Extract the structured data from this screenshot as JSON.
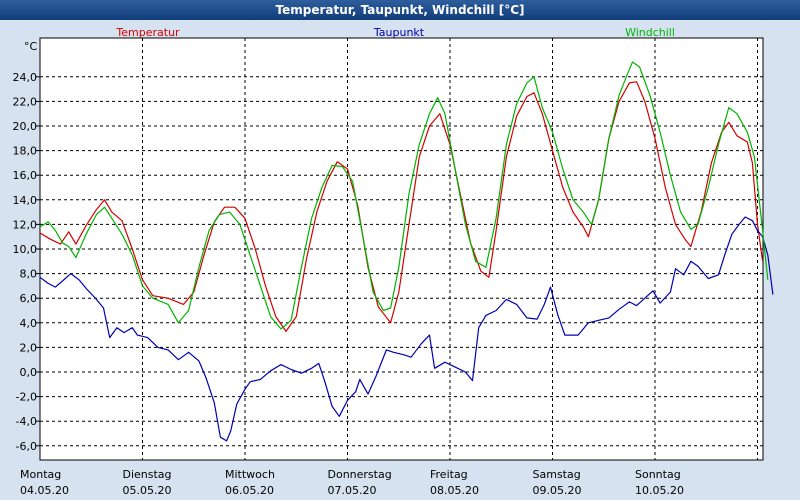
{
  "window": {
    "title": "Temperatur, Taupunkt, Windchill [°C]"
  },
  "chart_data": {
    "type": "line",
    "title": "Temperatur, Taupunkt, Windchill [°C]",
    "ylabel": "°C",
    "ylim": [
      -7.2,
      27.0
    ],
    "yticks": [
      24.0,
      22.0,
      20.0,
      18.0,
      16.0,
      14.0,
      12.0,
      10.0,
      8.0,
      6.0,
      4.0,
      2.0,
      0.0,
      -2.0,
      -4.0,
      -6.0
    ],
    "ytick_labels": [
      "24,0",
      "22,0",
      "20,0",
      "18,0",
      "16,0",
      "14,0",
      "12,0",
      "10,0",
      "8,0",
      "6,0",
      "4,0",
      "2,0",
      "0,0",
      "-2,0",
      "-4,0",
      "-6,0"
    ],
    "x_unit": "day index (0 = 04.05.20 00:00)",
    "xlim": [
      0,
      7.0
    ],
    "x_ticks": [
      {
        "day": "Montag",
        "date": "04.05.20"
      },
      {
        "day": "Dienstag",
        "date": "05.05.20"
      },
      {
        "day": "Mittwoch",
        "date": "06.05.20"
      },
      {
        "day": "Donnerstag",
        "date": "07.05.20"
      },
      {
        "day": "Freitag",
        "date": "08.05.20"
      },
      {
        "day": "Samstag",
        "date": "09.05.20"
      },
      {
        "day": "Sonntag",
        "date": "10.05.20"
      }
    ],
    "grid": true,
    "legend_position": "top",
    "series": [
      {
        "name": "Temperatur",
        "color": "#d40000",
        "points": [
          [
            0.0,
            11.3
          ],
          [
            0.1,
            10.8
          ],
          [
            0.2,
            10.4
          ],
          [
            0.28,
            11.4
          ],
          [
            0.35,
            10.4
          ],
          [
            0.45,
            11.9
          ],
          [
            0.55,
            13.2
          ],
          [
            0.63,
            14.0
          ],
          [
            0.7,
            13.0
          ],
          [
            0.8,
            12.3
          ],
          [
            0.9,
            10.0
          ],
          [
            1.0,
            7.5
          ],
          [
            1.1,
            6.2
          ],
          [
            1.25,
            6.0
          ],
          [
            1.4,
            5.5
          ],
          [
            1.5,
            6.5
          ],
          [
            1.6,
            9.5
          ],
          [
            1.7,
            12.2
          ],
          [
            1.8,
            13.4
          ],
          [
            1.9,
            13.4
          ],
          [
            2.0,
            12.5
          ],
          [
            2.1,
            10.0
          ],
          [
            2.2,
            7.0
          ],
          [
            2.3,
            4.5
          ],
          [
            2.4,
            3.3
          ],
          [
            2.5,
            4.5
          ],
          [
            2.6,
            9.2
          ],
          [
            2.7,
            13.0
          ],
          [
            2.8,
            15.5
          ],
          [
            2.9,
            17.1
          ],
          [
            3.0,
            16.5
          ],
          [
            3.1,
            13.5
          ],
          [
            3.2,
            8.5
          ],
          [
            3.3,
            5.3
          ],
          [
            3.42,
            4.0
          ],
          [
            3.5,
            6.5
          ],
          [
            3.6,
            12.0
          ],
          [
            3.7,
            17.5
          ],
          [
            3.8,
            20.0
          ],
          [
            3.9,
            21.0
          ],
          [
            4.0,
            18.5
          ],
          [
            4.1,
            14.5
          ],
          [
            4.2,
            10.5
          ],
          [
            4.3,
            8.2
          ],
          [
            4.38,
            7.7
          ],
          [
            4.45,
            11.5
          ],
          [
            4.55,
            17.5
          ],
          [
            4.65,
            20.8
          ],
          [
            4.75,
            22.4
          ],
          [
            4.82,
            22.7
          ],
          [
            4.9,
            21.0
          ],
          [
            5.0,
            18.0
          ],
          [
            5.1,
            15.0
          ],
          [
            5.2,
            13.0
          ],
          [
            5.3,
            11.8
          ],
          [
            5.35,
            11.0
          ],
          [
            5.45,
            14.0
          ],
          [
            5.55,
            19.0
          ],
          [
            5.65,
            22.0
          ],
          [
            5.75,
            23.5
          ],
          [
            5.82,
            23.6
          ],
          [
            5.9,
            22.0
          ],
          [
            6.0,
            19.0
          ],
          [
            6.1,
            15.0
          ],
          [
            6.2,
            12.0
          ],
          [
            6.3,
            10.7
          ],
          [
            6.35,
            10.2
          ],
          [
            6.45,
            13.0
          ],
          [
            6.55,
            17.0
          ],
          [
            6.65,
            19.5
          ],
          [
            6.72,
            20.3
          ],
          [
            6.8,
            19.2
          ],
          [
            6.9,
            18.7
          ],
          [
            6.95,
            17.0
          ],
          [
            7.0,
            12.0
          ],
          [
            7.05,
            9.0
          ]
        ]
      },
      {
        "name": "Taupunkt",
        "color": "#0000b4",
        "points": [
          [
            0.0,
            7.7
          ],
          [
            0.08,
            7.2
          ],
          [
            0.15,
            6.9
          ],
          [
            0.22,
            7.4
          ],
          [
            0.3,
            8.0
          ],
          [
            0.38,
            7.5
          ],
          [
            0.45,
            6.8
          ],
          [
            0.55,
            5.9
          ],
          [
            0.62,
            5.2
          ],
          [
            0.68,
            2.8
          ],
          [
            0.75,
            3.6
          ],
          [
            0.82,
            3.2
          ],
          [
            0.9,
            3.6
          ],
          [
            0.95,
            3.0
          ],
          [
            1.05,
            2.8
          ],
          [
            1.15,
            2.0
          ],
          [
            1.25,
            1.8
          ],
          [
            1.35,
            1.0
          ],
          [
            1.45,
            1.6
          ],
          [
            1.55,
            0.9
          ],
          [
            1.62,
            -0.5
          ],
          [
            1.7,
            -2.5
          ],
          [
            1.76,
            -5.3
          ],
          [
            1.82,
            -5.6
          ],
          [
            1.86,
            -4.8
          ],
          [
            1.92,
            -2.6
          ],
          [
            2.0,
            -1.4
          ],
          [
            2.05,
            -0.8
          ],
          [
            2.15,
            -0.6
          ],
          [
            2.25,
            0.1
          ],
          [
            2.35,
            0.6
          ],
          [
            2.45,
            0.2
          ],
          [
            2.55,
            -0.1
          ],
          [
            2.65,
            0.3
          ],
          [
            2.72,
            0.7
          ],
          [
            2.78,
            -0.8
          ],
          [
            2.85,
            -2.8
          ],
          [
            2.92,
            -3.6
          ],
          [
            3.0,
            -2.3
          ],
          [
            3.08,
            -1.6
          ],
          [
            3.12,
            -0.6
          ],
          [
            3.2,
            -1.8
          ],
          [
            3.28,
            -0.3
          ],
          [
            3.38,
            1.8
          ],
          [
            3.45,
            1.6
          ],
          [
            3.55,
            1.4
          ],
          [
            3.62,
            1.2
          ],
          [
            3.72,
            2.3
          ],
          [
            3.8,
            3.0
          ],
          [
            3.85,
            0.3
          ],
          [
            3.95,
            0.8
          ],
          [
            4.05,
            0.4
          ],
          [
            4.15,
            0.0
          ],
          [
            4.22,
            -0.7
          ],
          [
            4.28,
            3.6
          ],
          [
            4.35,
            4.6
          ],
          [
            4.45,
            5.0
          ],
          [
            4.55,
            5.9
          ],
          [
            4.65,
            5.5
          ],
          [
            4.75,
            4.4
          ],
          [
            4.85,
            4.3
          ],
          [
            4.92,
            5.5
          ],
          [
            4.98,
            6.9
          ],
          [
            5.05,
            4.7
          ],
          [
            5.12,
            3.0
          ],
          [
            5.25,
            3.0
          ],
          [
            5.35,
            4.0
          ],
          [
            5.45,
            4.2
          ],
          [
            5.55,
            4.4
          ],
          [
            5.65,
            5.1
          ],
          [
            5.75,
            5.7
          ],
          [
            5.82,
            5.4
          ],
          [
            5.9,
            6.0
          ],
          [
            5.98,
            6.6
          ],
          [
            6.05,
            5.6
          ],
          [
            6.15,
            6.5
          ],
          [
            6.2,
            8.4
          ],
          [
            6.28,
            7.9
          ],
          [
            6.35,
            9.0
          ],
          [
            6.42,
            8.6
          ],
          [
            6.52,
            7.6
          ],
          [
            6.62,
            7.9
          ],
          [
            6.68,
            9.5
          ],
          [
            6.75,
            11.2
          ],
          [
            6.82,
            12.0
          ],
          [
            6.88,
            12.6
          ],
          [
            6.95,
            12.3
          ],
          [
            7.0,
            11.5
          ],
          [
            7.05,
            11.0
          ],
          [
            7.1,
            9.5
          ],
          [
            7.15,
            6.3
          ]
        ]
      },
      {
        "name": "Windchill",
        "color": "#00b400",
        "points": [
          [
            0.0,
            11.8
          ],
          [
            0.08,
            12.2
          ],
          [
            0.15,
            11.5
          ],
          [
            0.22,
            10.5
          ],
          [
            0.28,
            10.2
          ],
          [
            0.35,
            9.3
          ],
          [
            0.45,
            11.2
          ],
          [
            0.55,
            12.8
          ],
          [
            0.63,
            13.4
          ],
          [
            0.7,
            12.5
          ],
          [
            0.8,
            11.2
          ],
          [
            0.9,
            9.5
          ],
          [
            1.0,
            7.0
          ],
          [
            1.1,
            6.0
          ],
          [
            1.25,
            5.5
          ],
          [
            1.35,
            4.0
          ],
          [
            1.45,
            5.0
          ],
          [
            1.55,
            8.5
          ],
          [
            1.65,
            11.5
          ],
          [
            1.75,
            12.8
          ],
          [
            1.85,
            13.0
          ],
          [
            1.95,
            12.0
          ],
          [
            2.05,
            9.5
          ],
          [
            2.15,
            7.0
          ],
          [
            2.25,
            4.5
          ],
          [
            2.35,
            3.5
          ],
          [
            2.45,
            4.2
          ],
          [
            2.55,
            8.5
          ],
          [
            2.65,
            12.5
          ],
          [
            2.75,
            15.0
          ],
          [
            2.85,
            16.8
          ],
          [
            2.95,
            16.7
          ],
          [
            3.05,
            15.5
          ],
          [
            3.15,
            11.0
          ],
          [
            3.25,
            6.5
          ],
          [
            3.35,
            5.0
          ],
          [
            3.42,
            5.2
          ],
          [
            3.5,
            8.5
          ],
          [
            3.6,
            14.5
          ],
          [
            3.7,
            18.5
          ],
          [
            3.8,
            21.0
          ],
          [
            3.88,
            22.3
          ],
          [
            3.95,
            21.0
          ],
          [
            4.05,
            16.5
          ],
          [
            4.15,
            12.0
          ],
          [
            4.25,
            9.0
          ],
          [
            4.35,
            8.5
          ],
          [
            4.45,
            12.5
          ],
          [
            4.55,
            18.5
          ],
          [
            4.65,
            21.8
          ],
          [
            4.75,
            23.5
          ],
          [
            4.82,
            24.0
          ],
          [
            4.9,
            21.5
          ],
          [
            5.0,
            19.5
          ],
          [
            5.1,
            16.5
          ],
          [
            5.2,
            14.0
          ],
          [
            5.3,
            13.0
          ],
          [
            5.38,
            12.0
          ],
          [
            5.45,
            14.0
          ],
          [
            5.55,
            19.0
          ],
          [
            5.65,
            22.5
          ],
          [
            5.72,
            24.0
          ],
          [
            5.78,
            25.2
          ],
          [
            5.85,
            24.8
          ],
          [
            5.95,
            22.5
          ],
          [
            6.05,
            19.5
          ],
          [
            6.15,
            16.0
          ],
          [
            6.25,
            13.0
          ],
          [
            6.35,
            11.6
          ],
          [
            6.42,
            12.0
          ],
          [
            6.52,
            15.0
          ],
          [
            6.62,
            18.5
          ],
          [
            6.72,
            21.5
          ],
          [
            6.8,
            21.0
          ],
          [
            6.9,
            19.5
          ],
          [
            6.97,
            17.5
          ],
          [
            7.05,
            11.5
          ],
          [
            7.1,
            7.5
          ]
        ]
      }
    ]
  }
}
